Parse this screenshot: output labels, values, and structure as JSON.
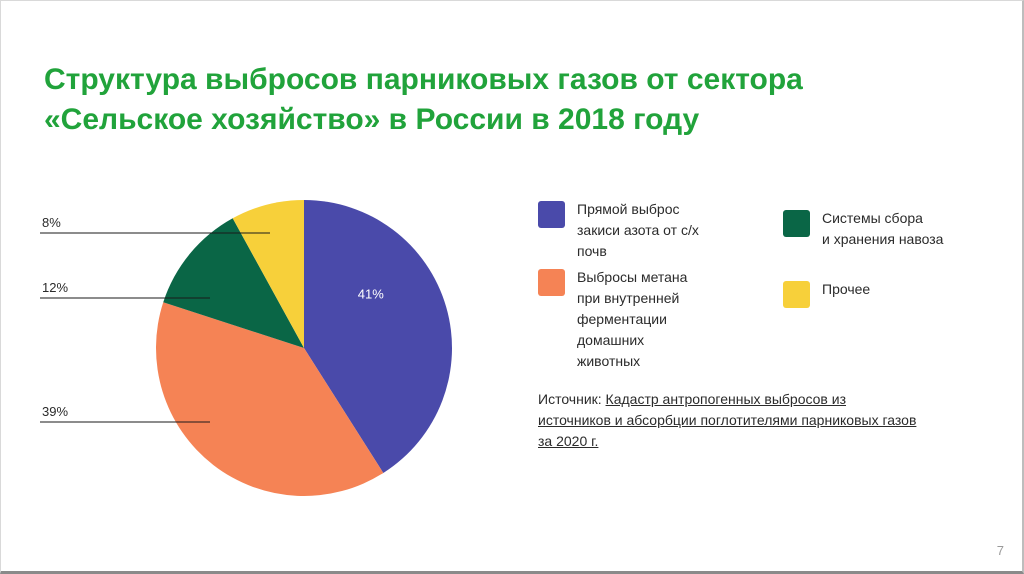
{
  "slide": {
    "title_line1": "Структура выбросов парниковых газов от сектора",
    "title_line2": "«Сельское хозяйство» в России в 2018 году",
    "page_number": "7"
  },
  "source": {
    "label": "Источник:",
    "text": "Кадастр антропогенных выбросов из источников и абсорбции поглотителями парниковых газов за 2020 г."
  },
  "chart_data": {
    "type": "pie",
    "title": "",
    "slices": [
      {
        "name": "Прямой выброс закиси азота от с/х почв",
        "value": 41,
        "label": "41%",
        "color": "#4a4aaa"
      },
      {
        "name": "Выбросы метана при внутренней ферментации домашних животных",
        "value": 39,
        "label": "39%",
        "color": "#f58355"
      },
      {
        "name": "Системы сбора и хранения навоза",
        "value": 12,
        "label": "12%",
        "color": "#0a6646"
      },
      {
        "name": "Прочее",
        "value": 8,
        "label": "8%",
        "color": "#f7d03a"
      }
    ]
  },
  "legend": [
    {
      "text": "Прямой выброс\nзакиси азота от с/х\nпочв",
      "color": "#4a4aaa"
    },
    {
      "text": "Системы сбора\nи хранения навоза",
      "color": "#0a6646"
    },
    {
      "text": "Выбросы метана\nпри внутренней\nферментации\nдомашних\nживотных",
      "color": "#f58355"
    },
    {
      "text": "Прочее",
      "color": "#f7d03a"
    }
  ]
}
